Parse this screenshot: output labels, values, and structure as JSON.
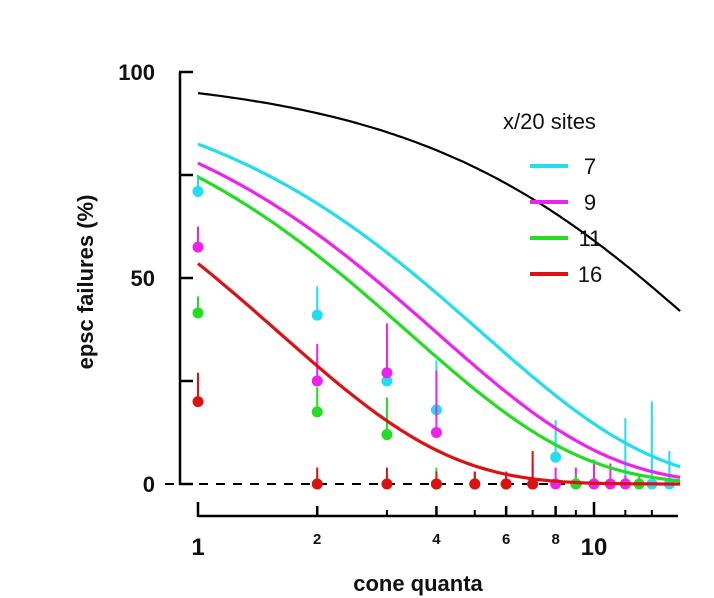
{
  "chart_data": {
    "type": "scatter",
    "xscale": "log",
    "xlabel": "cone quanta",
    "ylabel": "epsc failures (%)",
    "xlim": [
      1,
      16.5
    ],
    "ylim": [
      0,
      100
    ],
    "x_ticks": [
      {
        "value": 1,
        "label": "1",
        "major": true
      },
      {
        "value": 2,
        "label": "2",
        "major": false
      },
      {
        "value": 4,
        "label": "4",
        "major": false
      },
      {
        "value": 6,
        "label": "6",
        "major": false
      },
      {
        "value": 8,
        "label": "8",
        "major": false
      },
      {
        "value": 10,
        "label": "10",
        "major": true
      }
    ],
    "x_minor_ticks": [
      3,
      5,
      7,
      9,
      12,
      14
    ],
    "y_ticks": [
      {
        "value": 0,
        "label": "0"
      },
      {
        "value": 25,
        "label": ""
      },
      {
        "value": 50,
        "label": "50"
      },
      {
        "value": 75,
        "label": ""
      },
      {
        "value": 100,
        "label": "100"
      }
    ],
    "baseline": {
      "value": 0,
      "style": "dashed",
      "color": "#000000"
    },
    "reference_curve": {
      "color": "#000000",
      "k": 19
    },
    "legend": {
      "title": "x/20 sites",
      "position": "top-right",
      "entries": [
        {
          "label": "7",
          "color": "#22ddee"
        },
        {
          "label": "9",
          "color": "#ee22ee"
        },
        {
          "label": "11",
          "color": "#22dd22"
        },
        {
          "label": "16",
          "color": "#dd1111"
        }
      ]
    },
    "series": [
      {
        "name": "7",
        "color": "#22ddee",
        "fit_k": 5.2,
        "points": [
          {
            "x": 1,
            "y": 71,
            "err": 4
          },
          {
            "x": 2,
            "y": 41,
            "err": 7
          },
          {
            "x": 3,
            "y": 25,
            "err": 5
          },
          {
            "x": 4,
            "y": 18,
            "err": 12
          },
          {
            "x": 8,
            "y": 6.5,
            "err": 9
          },
          {
            "x": 10,
            "y": 0,
            "err": 6
          },
          {
            "x": 12,
            "y": 0,
            "err": 16
          },
          {
            "x": 14,
            "y": 0,
            "err": 20
          },
          {
            "x": 15.5,
            "y": 0,
            "err": 8
          }
        ]
      },
      {
        "name": "9",
        "color": "#ee22ee",
        "fit_k": 4.0,
        "points": [
          {
            "x": 1,
            "y": 57.5,
            "err": 5
          },
          {
            "x": 2,
            "y": 25,
            "err": 9
          },
          {
            "x": 3,
            "y": 27,
            "err": 12
          },
          {
            "x": 4,
            "y": 12.5,
            "err": 15
          },
          {
            "x": 5,
            "y": 0,
            "err": 3
          },
          {
            "x": 6,
            "y": 0,
            "err": 3
          },
          {
            "x": 7,
            "y": 0,
            "err": 5
          },
          {
            "x": 8,
            "y": 0,
            "err": 4
          },
          {
            "x": 9,
            "y": 0,
            "err": 4
          },
          {
            "x": 10,
            "y": 0,
            "err": 5
          },
          {
            "x": 11,
            "y": 0,
            "err": 5
          },
          {
            "x": 12,
            "y": 0,
            "err": 2
          }
        ]
      },
      {
        "name": "11",
        "color": "#22dd22",
        "fit_k": 3.4,
        "points": [
          {
            "x": 1,
            "y": 41.5,
            "err": 4
          },
          {
            "x": 2,
            "y": 17.5,
            "err": 6
          },
          {
            "x": 3,
            "y": 12,
            "err": 9
          },
          {
            "x": 4,
            "y": 0,
            "err": 4
          },
          {
            "x": 5,
            "y": 0,
            "err": 3
          },
          {
            "x": 6,
            "y": 0,
            "err": 3
          },
          {
            "x": 7,
            "y": 0,
            "err": 2
          },
          {
            "x": 9,
            "y": 0,
            "err": 2
          },
          {
            "x": 13,
            "y": 0,
            "err": 2
          }
        ]
      },
      {
        "name": "16",
        "color": "#dd1111",
        "fit_k": 1.6,
        "points": [
          {
            "x": 1,
            "y": 20,
            "err": 7
          },
          {
            "x": 2,
            "y": 0,
            "err": 4
          },
          {
            "x": 3,
            "y": 0,
            "err": 4
          },
          {
            "x": 4,
            "y": 0,
            "err": 3
          },
          {
            "x": 5,
            "y": 0,
            "err": 3
          },
          {
            "x": 6,
            "y": 0,
            "err": 3
          },
          {
            "x": 7,
            "y": 0,
            "err": 8
          }
        ]
      }
    ]
  }
}
